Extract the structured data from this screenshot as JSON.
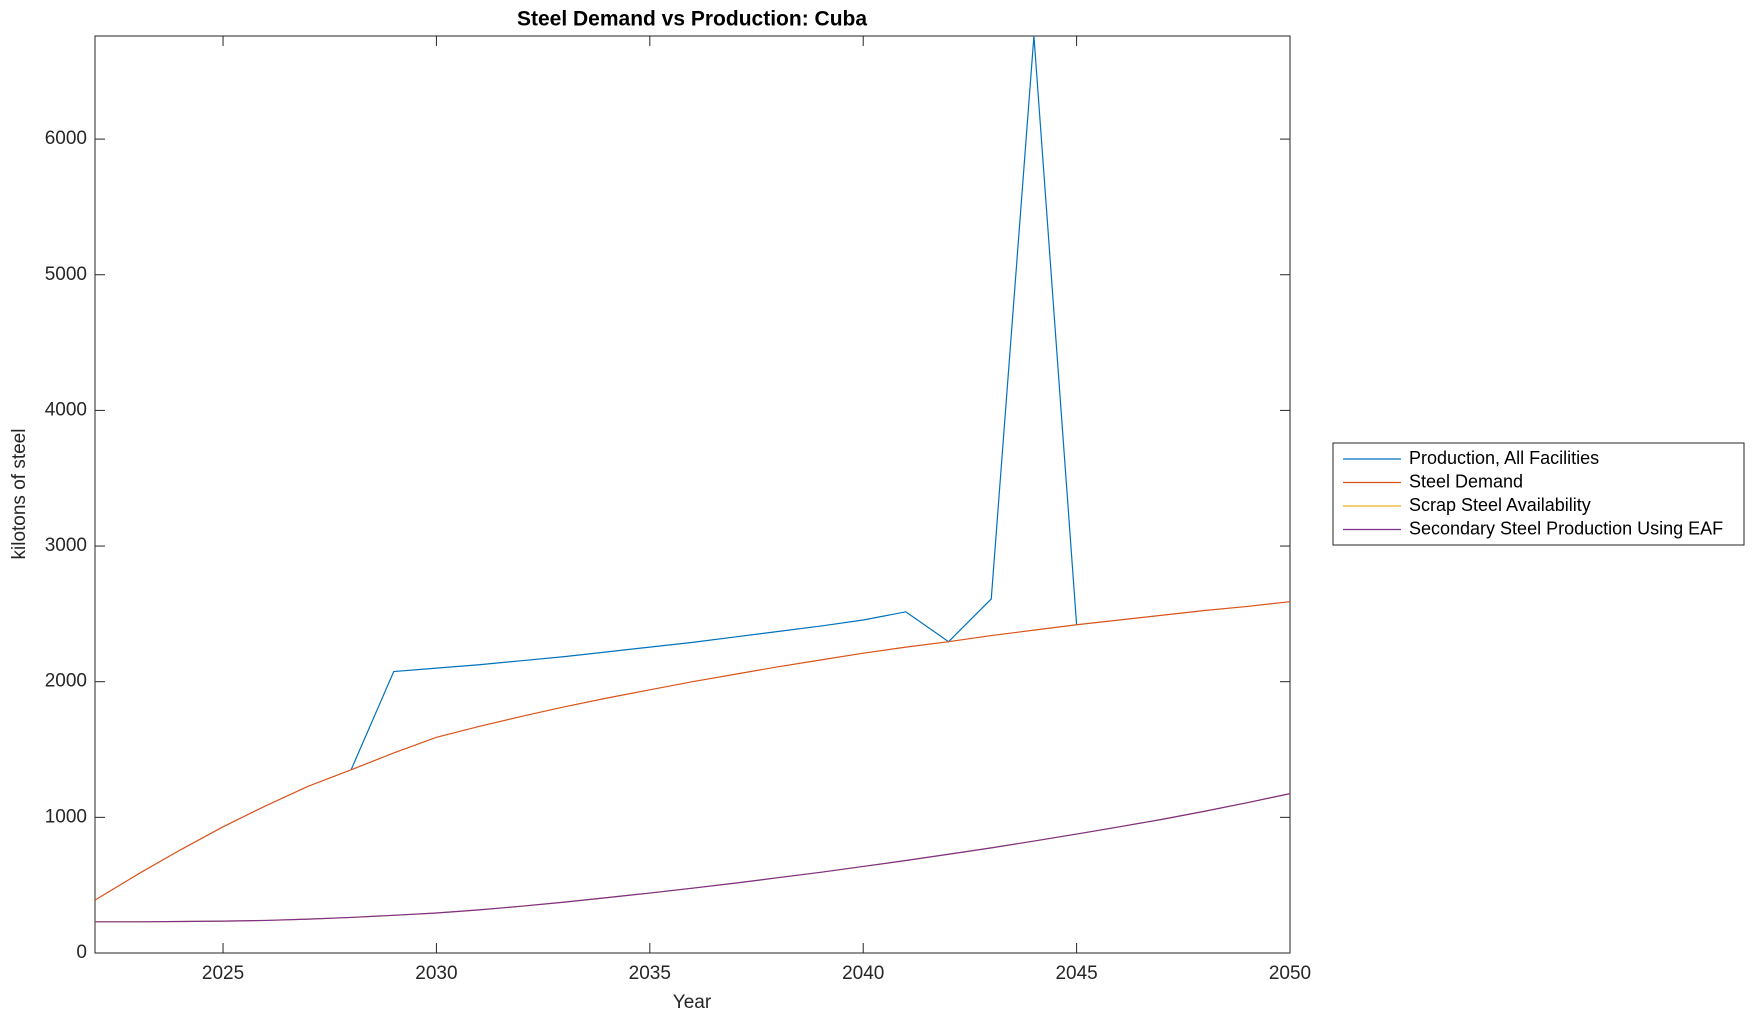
{
  "chart_data": {
    "type": "line",
    "title": "Steel Demand vs Production: Cuba",
    "x_label": "Year",
    "y_label": "kilotons of steel",
    "x": [
      2022,
      2023,
      2024,
      2025,
      2026,
      2027,
      2028,
      2029,
      2030,
      2031,
      2032,
      2033,
      2034,
      2035,
      2036,
      2037,
      2038,
      2039,
      2040,
      2041,
      2042,
      2043,
      2044,
      2045,
      2046,
      2047,
      2048,
      2049,
      2050
    ],
    "series": [
      {
        "name": "Production, All Facilities",
        "color": "#0072BD",
        "values": [
          null,
          null,
          null,
          null,
          null,
          null,
          1350,
          2075,
          2100,
          2125,
          2155,
          2185,
          2220,
          2255,
          2290,
          2330,
          2370,
          2410,
          2455,
          2515,
          2295,
          2610,
          6760,
          2420,
          null,
          null,
          null,
          null,
          null
        ]
      },
      {
        "name": "Steel Demand",
        "color": "#D95319",
        "values": [
          390,
          580,
          760,
          930,
          1085,
          1230,
          1350,
          1475,
          1590,
          1670,
          1745,
          1815,
          1880,
          1940,
          2000,
          2055,
          2110,
          2160,
          2210,
          2255,
          2295,
          2340,
          2380,
          2420,
          2455,
          2490,
          2525,
          2555,
          2590
        ]
      },
      {
        "name": "Scrap Steel Availability",
        "color": "#EDB120",
        "values": [
          230,
          230,
          232,
          235,
          240,
          250,
          262,
          278,
          295,
          318,
          345,
          375,
          408,
          442,
          478,
          515,
          555,
          595,
          638,
          682,
          728,
          775,
          825,
          877,
          930,
          985,
          1045,
          1108,
          1175
        ]
      },
      {
        "name": "Secondary Steel Production Using EAF",
        "color": "#7E2F8E",
        "values": [
          230,
          230,
          232,
          235,
          240,
          250,
          262,
          278,
          295,
          318,
          345,
          375,
          408,
          442,
          478,
          515,
          555,
          595,
          638,
          682,
          728,
          775,
          825,
          877,
          930,
          985,
          1045,
          1108,
          1175
        ]
      }
    ],
    "xlim": [
      2022,
      2050
    ],
    "xticks": [
      2025,
      2030,
      2035,
      2040,
      2045,
      2050
    ],
    "ylim": [
      0,
      6760
    ],
    "yticks": [
      0,
      1000,
      2000,
      3000,
      4000,
      5000,
      6000
    ],
    "grid": false,
    "legend": "eastoutside"
  }
}
